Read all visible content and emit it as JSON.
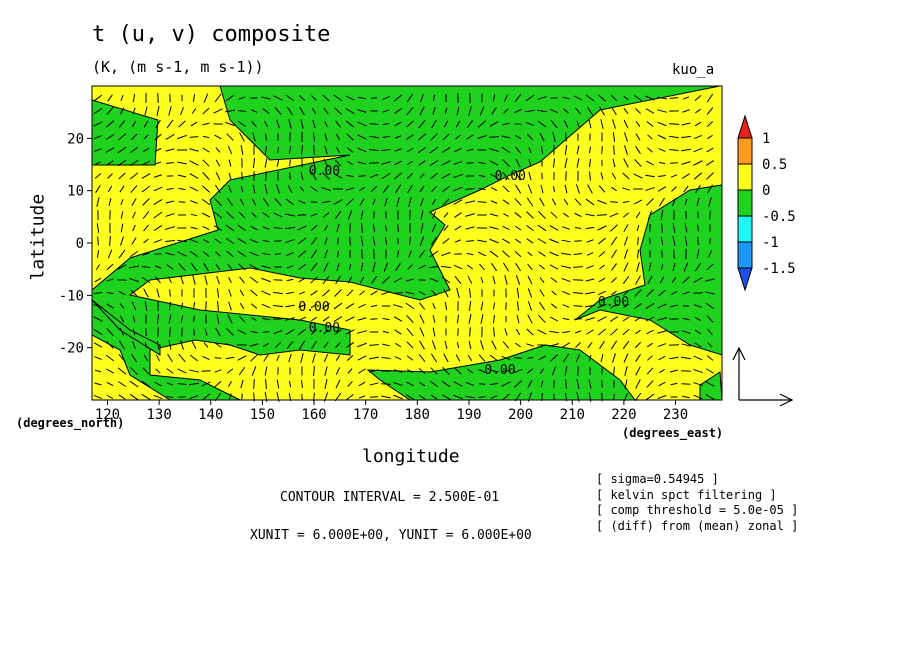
{
  "chart_data": {
    "type": "contour",
    "title": "t (u, v) composite",
    "subtitle": "(K, (m s-1, m s-1))",
    "run_label": "kuo_a",
    "xlabel": "longitude",
    "ylabel": "latitude",
    "x_unit": "(degrees_east)",
    "y_unit": "(degrees_north)",
    "xlim": [
      117,
      239
    ],
    "ylim": [
      -30,
      30
    ],
    "x_ticks": [
      120,
      130,
      140,
      150,
      160,
      170,
      180,
      190,
      200,
      210,
      220,
      230
    ],
    "y_ticks": [
      20,
      10,
      0,
      -10,
      -20
    ],
    "contour_labels": [
      {
        "text": "0.00",
        "lon": 162,
        "lat": 13
      },
      {
        "text": "0.00",
        "lon": 198,
        "lat": 12
      },
      {
        "text": "0.00",
        "lon": 160,
        "lat": -13
      },
      {
        "text": "0.00",
        "lon": 162,
        "lat": -17
      },
      {
        "text": "0.00",
        "lon": 218,
        "lat": -12
      },
      {
        "text": "0.00",
        "lon": 196,
        "lat": -25
      }
    ],
    "colorbar": {
      "labels": [
        "1",
        "0.5",
        "0",
        "-0.5",
        "-1",
        "-1.5"
      ],
      "colors": [
        "#e8221a",
        "#ff9b1a",
        "#ffff1e",
        "#1ed21e",
        "#1ef5f5",
        "#1e96f5",
        "#1e50e6"
      ]
    },
    "fill_colors": {
      "positive": "#ffff1e",
      "negative": "#1ed21e"
    },
    "notes": [
      "[ sigma=0.54945 ]",
      "[ kelvin spct filtering ]",
      "[ comp threshold = 5.0e-05 ]",
      "[ (diff) from (mean) zonal ]"
    ],
    "contour_interval": "CONTOUR INTERVAL = 2.500E-01",
    "vector_units": "XUNIT = 6.000E+00, YUNIT = 6.000E+00"
  }
}
